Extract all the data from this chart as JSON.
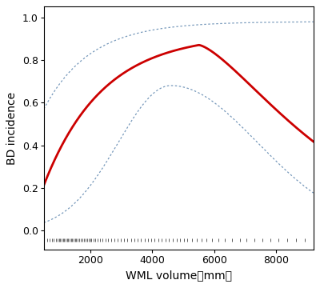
{
  "title": "",
  "xlabel": "WML volume（mm）",
  "ylabel": "BD incidence",
  "xlim": [
    500,
    9200
  ],
  "ylim": [
    -0.09,
    1.05
  ],
  "yticks": [
    0.0,
    0.2,
    0.4,
    0.6,
    0.8,
    1.0
  ],
  "xticks": [
    2000,
    4000,
    6000,
    8000
  ],
  "main_color": "#cc0000",
  "ci_color": "#7799bb",
  "background_color": "#ffffff",
  "rug_color": "#222222",
  "rug_data": [
    600,
    680,
    750,
    820,
    880,
    940,
    990,
    1030,
    1080,
    1120,
    1160,
    1210,
    1250,
    1290,
    1330,
    1370,
    1410,
    1450,
    1500,
    1540,
    1590,
    1640,
    1690,
    1740,
    1790,
    1840,
    1890,
    1940,
    1990,
    2040,
    2100,
    2160,
    2230,
    2310,
    2400,
    2490,
    2580,
    2680,
    2780,
    2880,
    2980,
    3090,
    3200,
    3310,
    3420,
    3530,
    3640,
    3750,
    3860,
    3970,
    4080,
    4190,
    4300,
    4420,
    4540,
    4660,
    4780,
    4900,
    5020,
    5140,
    5280,
    5430,
    5590,
    5760,
    5940,
    6130,
    6350,
    6580,
    6820,
    7050,
    7290,
    7550,
    7820,
    8080,
    8350,
    8640,
    8920
  ]
}
